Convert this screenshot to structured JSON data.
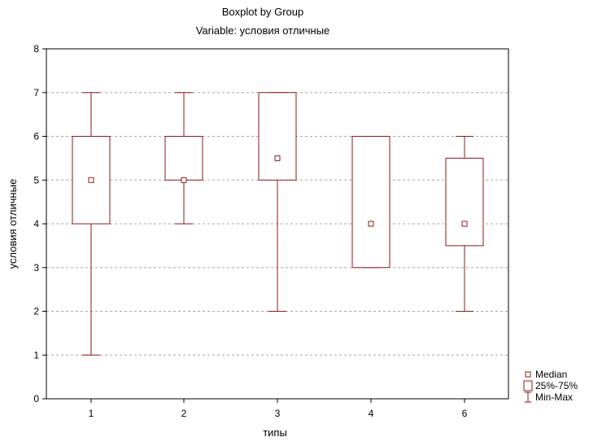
{
  "chart_data": {
    "type": "boxplot",
    "title": "Boxplot by Group",
    "subtitle": "Variable: условия отличные",
    "xlabel": "типы",
    "ylabel": "условия отличные",
    "ylim": [
      0,
      8
    ],
    "yticks": [
      0,
      1,
      2,
      3,
      4,
      5,
      6,
      7,
      8
    ],
    "grid": true,
    "legend_position": "bottom-right",
    "colors": {
      "mark": "#8b1a1a",
      "grid": "#a6a6a6",
      "axis": "#000000"
    },
    "categories": [
      "1",
      "2",
      "3",
      "4",
      "6"
    ],
    "boxes": [
      {
        "category": "1",
        "min": 1,
        "q1": 4,
        "median": 5,
        "q3": 6,
        "max": 7
      },
      {
        "category": "2",
        "min": 4,
        "q1": 5,
        "median": 5,
        "q3": 6,
        "max": 7
      },
      {
        "category": "3",
        "min": 2,
        "q1": 5,
        "median": 5.5,
        "q3": 7,
        "max": 7
      },
      {
        "category": "4",
        "min": 3,
        "q1": 3,
        "median": 4,
        "q3": 6,
        "max": 6
      },
      {
        "category": "6",
        "min": 2,
        "q1": 3.5,
        "median": 4,
        "q3": 5.5,
        "max": 6
      }
    ],
    "legend": [
      {
        "key": "median",
        "label": "Median"
      },
      {
        "key": "box",
        "label": "25%-75%"
      },
      {
        "key": "whisker",
        "label": "Min-Max"
      }
    ]
  }
}
